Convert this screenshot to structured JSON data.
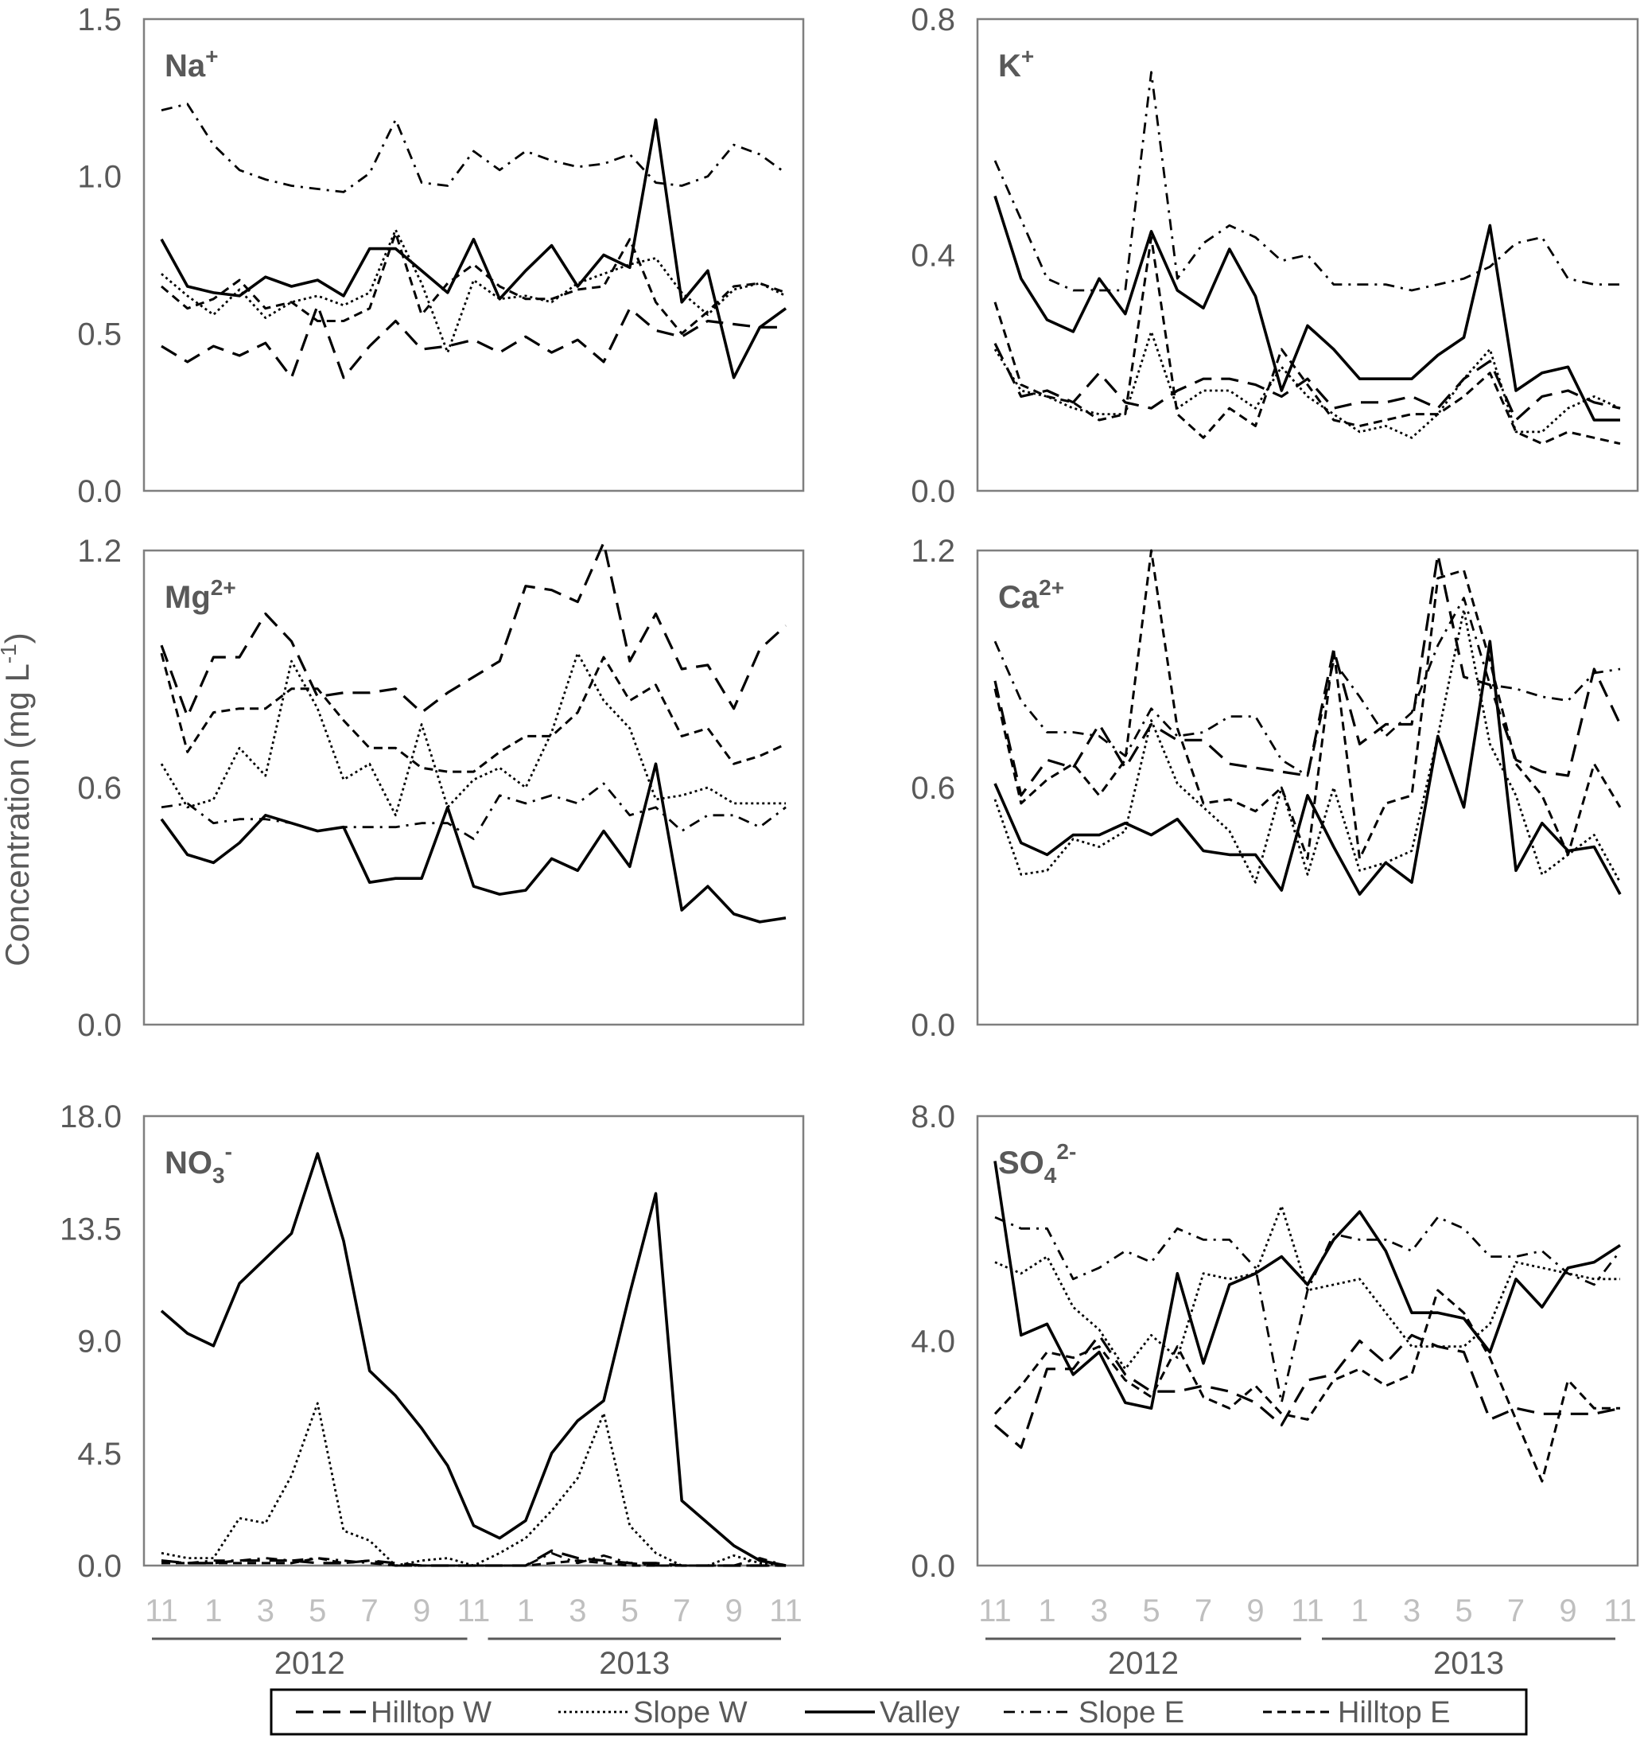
{
  "chart_data": [
    {
      "type": "line",
      "title": "Na+",
      "title_base": "Na",
      "title_sup": "+",
      "title_sub": "",
      "ylim": [
        0,
        1.5
      ],
      "yticks": [
        "0.0",
        "0.5",
        "1.0",
        "1.5"
      ],
      "ytick_values": [
        0,
        0.5,
        1.0,
        1.5
      ],
      "series": [
        {
          "name": "Hilltop W",
          "values": [
            0.46,
            0.41,
            0.46,
            0.43,
            0.47,
            0.36,
            0.59,
            0.36,
            0.46,
            0.54,
            0.45,
            0.46,
            0.48,
            0.44,
            0.49,
            0.44,
            0.48,
            0.41,
            0.58,
            0.51,
            0.49,
            0.54,
            0.53,
            0.52,
            0.52
          ]
        },
        {
          "name": "Slope W",
          "values": [
            0.69,
            0.62,
            0.56,
            0.64,
            0.55,
            0.6,
            0.62,
            0.59,
            0.63,
            0.83,
            0.66,
            0.44,
            0.67,
            0.61,
            0.62,
            0.6,
            0.66,
            0.69,
            0.72,
            0.74,
            0.63,
            0.56,
            0.64,
            0.66,
            0.62
          ]
        },
        {
          "name": "Valley",
          "values": [
            0.8,
            0.65,
            0.63,
            0.62,
            0.68,
            0.65,
            0.67,
            0.62,
            0.77,
            0.77,
            0.7,
            0.63,
            0.8,
            0.61,
            0.7,
            0.78,
            0.65,
            0.75,
            0.71,
            1.18,
            0.6,
            0.7,
            0.36,
            0.52,
            0.58
          ]
        },
        {
          "name": "Slope E",
          "values": [
            1.21,
            1.23,
            1.1,
            1.02,
            0.99,
            0.97,
            0.96,
            0.95,
            1.01,
            1.18,
            0.98,
            0.97,
            1.08,
            1.02,
            1.08,
            1.05,
            1.03,
            1.04,
            1.07,
            0.98,
            0.97,
            1.0,
            1.1,
            1.07,
            1.01
          ]
        },
        {
          "name": "Hilltop E",
          "values": [
            0.65,
            0.58,
            0.61,
            0.67,
            0.58,
            0.6,
            0.54,
            0.54,
            0.58,
            0.82,
            0.56,
            0.66,
            0.72,
            0.65,
            0.61,
            0.61,
            0.64,
            0.65,
            0.8,
            0.6,
            0.5,
            0.57,
            0.65,
            0.66,
            0.63
          ]
        }
      ]
    },
    {
      "type": "line",
      "title": "K+",
      "title_base": "K",
      "title_sup": "+",
      "title_sub": "",
      "ylim": [
        0,
        0.8
      ],
      "yticks": [
        "0.0",
        "0.4",
        "0.8"
      ],
      "ytick_values": [
        0,
        0.4,
        0.8
      ],
      "series": [
        {
          "name": "Hilltop W",
          "values": [
            0.25,
            0.16,
            0.17,
            0.15,
            0.2,
            0.15,
            0.14,
            0.17,
            0.19,
            0.19,
            0.18,
            0.16,
            0.19,
            0.14,
            0.15,
            0.15,
            0.16,
            0.14,
            0.19,
            0.22,
            0.12,
            0.16,
            0.17,
            0.15,
            0.14
          ]
        },
        {
          "name": "Slope W",
          "values": [
            0.24,
            0.17,
            0.16,
            0.14,
            0.13,
            0.13,
            0.27,
            0.14,
            0.17,
            0.17,
            0.14,
            0.21,
            0.16,
            0.13,
            0.1,
            0.11,
            0.09,
            0.13,
            0.19,
            0.24,
            0.1,
            0.1,
            0.14,
            0.16,
            0.14
          ]
        },
        {
          "name": "Valley",
          "values": [
            0.5,
            0.36,
            0.29,
            0.27,
            0.36,
            0.3,
            0.44,
            0.34,
            0.31,
            0.41,
            0.33,
            0.17,
            0.28,
            0.24,
            0.19,
            0.19,
            0.19,
            0.23,
            0.26,
            0.45,
            0.17,
            0.2,
            0.21,
            0.12,
            0.12
          ]
        },
        {
          "name": "Slope E",
          "values": [
            0.56,
            0.46,
            0.36,
            0.34,
            0.34,
            0.34,
            0.71,
            0.36,
            0.42,
            0.45,
            0.43,
            0.39,
            0.4,
            0.35,
            0.35,
            0.35,
            0.34,
            0.35,
            0.36,
            0.38,
            0.42,
            0.43,
            0.36,
            0.35,
            0.35
          ]
        },
        {
          "name": "Hilltop E",
          "values": [
            0.32,
            0.18,
            0.16,
            0.15,
            0.12,
            0.13,
            0.43,
            0.13,
            0.09,
            0.14,
            0.11,
            0.24,
            0.18,
            0.12,
            0.11,
            0.12,
            0.13,
            0.13,
            0.16,
            0.2,
            0.1,
            0.08,
            0.1,
            0.09,
            0.08
          ]
        }
      ]
    },
    {
      "type": "line",
      "title": "Mg2+",
      "title_base": "Mg",
      "title_sup": "2+",
      "title_sub": "",
      "ylim": [
        0,
        1.2
      ],
      "yticks": [
        "0.0",
        "0.6",
        "1.2"
      ],
      "ytick_values": [
        0,
        0.6,
        1.2
      ],
      "series": [
        {
          "name": "Hilltop W",
          "values": [
            0.96,
            0.78,
            0.93,
            0.93,
            1.04,
            0.97,
            0.83,
            0.84,
            0.84,
            0.85,
            0.79,
            0.84,
            0.88,
            0.92,
            1.11,
            1.1,
            1.07,
            1.22,
            0.92,
            1.04,
            0.9,
            0.91,
            0.8,
            0.95,
            1.01
          ]
        },
        {
          "name": "Slope W",
          "values": [
            0.66,
            0.55,
            0.57,
            0.7,
            0.63,
            0.92,
            0.8,
            0.62,
            0.66,
            0.53,
            0.76,
            0.55,
            0.62,
            0.65,
            0.6,
            0.74,
            0.94,
            0.82,
            0.75,
            0.57,
            0.58,
            0.6,
            0.56,
            0.56,
            0.56
          ]
        },
        {
          "name": "Valley",
          "values": [
            0.52,
            0.43,
            0.41,
            0.46,
            0.53,
            0.51,
            0.49,
            0.5,
            0.36,
            0.37,
            0.37,
            0.55,
            0.35,
            0.33,
            0.34,
            0.42,
            0.39,
            0.49,
            0.4,
            0.66,
            0.29,
            0.35,
            0.28,
            0.26,
            0.27
          ]
        },
        {
          "name": "Slope E",
          "values": [
            0.55,
            0.56,
            0.51,
            0.52,
            0.52,
            0.51,
            0.49,
            0.5,
            0.5,
            0.5,
            0.51,
            0.51,
            0.47,
            0.58,
            0.56,
            0.58,
            0.56,
            0.61,
            0.53,
            0.55,
            0.49,
            0.53,
            0.53,
            0.5,
            0.55
          ]
        },
        {
          "name": "Hilltop E",
          "values": [
            0.94,
            0.69,
            0.79,
            0.8,
            0.8,
            0.85,
            0.85,
            0.77,
            0.7,
            0.7,
            0.65,
            0.64,
            0.64,
            0.69,
            0.73,
            0.73,
            0.79,
            0.93,
            0.82,
            0.86,
            0.73,
            0.75,
            0.66,
            0.68,
            0.71
          ]
        }
      ]
    },
    {
      "type": "line",
      "title": "Ca2+",
      "title_base": "Ca",
      "title_sup": "2+",
      "title_sub": "",
      "ylim": [
        0,
        1.2
      ],
      "yticks": [
        "0.0",
        "0.6",
        "1.2"
      ],
      "ytick_values": [
        0,
        0.6,
        1.2
      ],
      "series": [
        {
          "name": "Hilltop W",
          "values": [
            0.87,
            0.58,
            0.67,
            0.65,
            0.76,
            0.65,
            0.76,
            0.72,
            0.72,
            0.66,
            0.65,
            0.64,
            0.63,
            0.95,
            0.71,
            0.76,
            0.76,
            1.19,
            0.88,
            0.86,
            0.67,
            0.64,
            0.63,
            0.9,
            0.76
          ]
        },
        {
          "name": "Slope W",
          "values": [
            0.57,
            0.38,
            0.39,
            0.47,
            0.45,
            0.49,
            0.77,
            0.61,
            0.55,
            0.49,
            0.36,
            0.6,
            0.38,
            0.6,
            0.39,
            0.41,
            0.44,
            0.73,
            1.05,
            0.71,
            0.58,
            0.38,
            0.43,
            0.48,
            0.36
          ]
        },
        {
          "name": "Valley",
          "values": [
            0.61,
            0.46,
            0.43,
            0.48,
            0.48,
            0.51,
            0.48,
            0.52,
            0.44,
            0.43,
            0.43,
            0.34,
            0.58,
            0.45,
            0.33,
            0.41,
            0.36,
            0.73,
            0.55,
            0.97,
            0.39,
            0.51,
            0.44,
            0.45,
            0.33
          ]
        },
        {
          "name": "Slope E",
          "values": [
            0.97,
            0.82,
            0.74,
            0.74,
            0.73,
            0.68,
            0.8,
            0.73,
            0.74,
            0.78,
            0.78,
            0.67,
            0.63,
            0.92,
            0.83,
            0.73,
            0.79,
            0.96,
            1.08,
            0.86,
            0.85,
            0.83,
            0.82,
            0.89,
            0.9
          ]
        },
        {
          "name": "Hilltop E",
          "values": [
            0.85,
            0.56,
            0.62,
            0.66,
            0.58,
            0.67,
            1.2,
            0.75,
            0.56,
            0.57,
            0.54,
            0.6,
            0.42,
            0.95,
            0.42,
            0.56,
            0.58,
            1.13,
            1.15,
            0.92,
            0.66,
            0.58,
            0.43,
            0.66,
            0.55
          ]
        }
      ]
    },
    {
      "type": "line",
      "title": "NO3-",
      "title_base": "NO",
      "title_sup": "-",
      "title_sub": "3",
      "ylim": [
        0,
        18.0
      ],
      "yticks": [
        "0.0",
        "4.5",
        "9.0",
        "13.5",
        "18.0"
      ],
      "ytick_values": [
        0,
        4.5,
        9.0,
        13.5,
        18.0
      ],
      "series": [
        {
          "name": "Hilltop W",
          "values": [
            0.2,
            0.1,
            0.1,
            0.2,
            0.2,
            0.2,
            0.1,
            0.1,
            0.2,
            0.1,
            0.0,
            0.0,
            0.0,
            0.0,
            0.0,
            0.6,
            0.3,
            0.2,
            0.1,
            0.1,
            0.0,
            0.0,
            0.0,
            0.0,
            0.0
          ]
        },
        {
          "name": "Slope W",
          "values": [
            0.5,
            0.3,
            0.3,
            1.9,
            1.7,
            3.6,
            6.5,
            1.4,
            1.0,
            0.0,
            0.2,
            0.3,
            0.0,
            0.5,
            1.1,
            2.2,
            3.5,
            6.1,
            1.6,
            0.5,
            0.0,
            0.0,
            0.4,
            0.1,
            0.0
          ]
        },
        {
          "name": "Valley",
          "values": [
            10.2,
            9.3,
            8.8,
            11.3,
            12.3,
            13.3,
            16.5,
            13.0,
            7.8,
            6.8,
            5.5,
            4.0,
            1.6,
            1.1,
            1.8,
            4.5,
            5.8,
            6.6,
            10.9,
            14.9,
            2.6,
            1.7,
            0.8,
            0.2,
            0.0
          ]
        },
        {
          "name": "Slope E",
          "values": [
            0.2,
            0.1,
            0.2,
            0.2,
            0.3,
            0.2,
            0.3,
            0.2,
            0.1,
            0.0,
            0.0,
            0.0,
            0.0,
            0.0,
            0.0,
            0.5,
            0.1,
            0.4,
            0.1,
            0.0,
            0.0,
            0.0,
            0.0,
            0.3,
            0.0
          ]
        },
        {
          "name": "Hilltop E",
          "values": [
            0.1,
            0.1,
            0.1,
            0.1,
            0.1,
            0.1,
            0.3,
            0.1,
            0.2,
            0.0,
            0.0,
            0.0,
            0.0,
            0.0,
            0.0,
            0.1,
            0.2,
            0.1,
            0.0,
            0.0,
            0.0,
            0.0,
            0.0,
            0.0,
            0.0
          ]
        }
      ]
    },
    {
      "type": "line",
      "title": "SO42-",
      "title_base": "SO",
      "title_sup": "2-",
      "title_sub": "4",
      "ylim": [
        0,
        8.0
      ],
      "yticks": [
        "0.0",
        "4.0",
        "8.0"
      ],
      "ytick_values": [
        0,
        4.0,
        8.0
      ],
      "series": [
        {
          "name": "Hilltop W",
          "values": [
            2.5,
            2.1,
            3.5,
            3.5,
            4.1,
            3.4,
            3.1,
            3.1,
            3.2,
            3.1,
            2.9,
            2.5,
            3.3,
            3.4,
            4.0,
            3.6,
            4.1,
            3.9,
            3.8,
            2.6,
            2.8,
            2.7,
            2.7,
            2.7,
            2.8
          ]
        },
        {
          "name": "Slope W",
          "values": [
            5.4,
            5.2,
            5.5,
            4.6,
            4.2,
            3.5,
            4.1,
            3.7,
            5.2,
            5.1,
            5.2,
            6.4,
            4.9,
            5.0,
            5.1,
            4.5,
            3.9,
            3.9,
            3.9,
            4.3,
            5.4,
            5.3,
            5.2,
            5.1,
            5.1
          ]
        },
        {
          "name": "Valley",
          "values": [
            7.2,
            4.1,
            4.3,
            3.4,
            3.8,
            2.9,
            2.8,
            5.2,
            3.6,
            5.0,
            5.2,
            5.5,
            5.0,
            5.8,
            6.3,
            5.6,
            4.5,
            4.5,
            4.4,
            3.8,
            5.1,
            4.6,
            5.3,
            5.4,
            5.7
          ]
        },
        {
          "name": "Slope E",
          "values": [
            6.2,
            6.0,
            6.0,
            5.1,
            5.3,
            5.6,
            5.4,
            6.0,
            5.8,
            5.8,
            5.3,
            2.9,
            4.9,
            5.9,
            5.8,
            5.8,
            5.6,
            6.2,
            6.0,
            5.5,
            5.5,
            5.6,
            5.2,
            5.0,
            5.6
          ]
        },
        {
          "name": "Hilltop E",
          "values": [
            2.7,
            3.2,
            3.8,
            3.7,
            3.9,
            3.3,
            3.0,
            3.9,
            3.0,
            2.8,
            3.2,
            2.7,
            2.6,
            3.3,
            3.5,
            3.2,
            3.4,
            4.9,
            4.5,
            3.7,
            2.6,
            1.5,
            3.3,
            2.8,
            2.8
          ]
        }
      ]
    }
  ],
  "x_axis": {
    "months": [
      "11",
      "12",
      "1",
      "2",
      "3",
      "4",
      "5",
      "6",
      "7",
      "8",
      "9",
      "10",
      "11",
      "12",
      "1",
      "2",
      "3",
      "4",
      "5",
      "6",
      "7",
      "8",
      "9",
      "10",
      "11"
    ],
    "tick_labels": [
      "11",
      "1",
      "3",
      "5",
      "7",
      "9",
      "11",
      "1",
      "3",
      "5",
      "7",
      "9",
      "11"
    ],
    "years": [
      "2012",
      "2013"
    ]
  },
  "ylabel": "Concentration (mg L",
  "ylabel_sup": "-1",
  "ylabel_close": ")",
  "legend": [
    {
      "name": "Hilltop W",
      "style": "long-dash"
    },
    {
      "name": "Slope W",
      "style": "dotted"
    },
    {
      "name": "Valley",
      "style": "solid"
    },
    {
      "name": "Slope E",
      "style": "dash-dot"
    },
    {
      "name": "Hilltop E",
      "style": "short-dash"
    }
  ],
  "colors": {
    "line": "#000000",
    "axis_text": "#595959",
    "month_text": "#bfbfbf",
    "frame": "#7f7f7f"
  }
}
